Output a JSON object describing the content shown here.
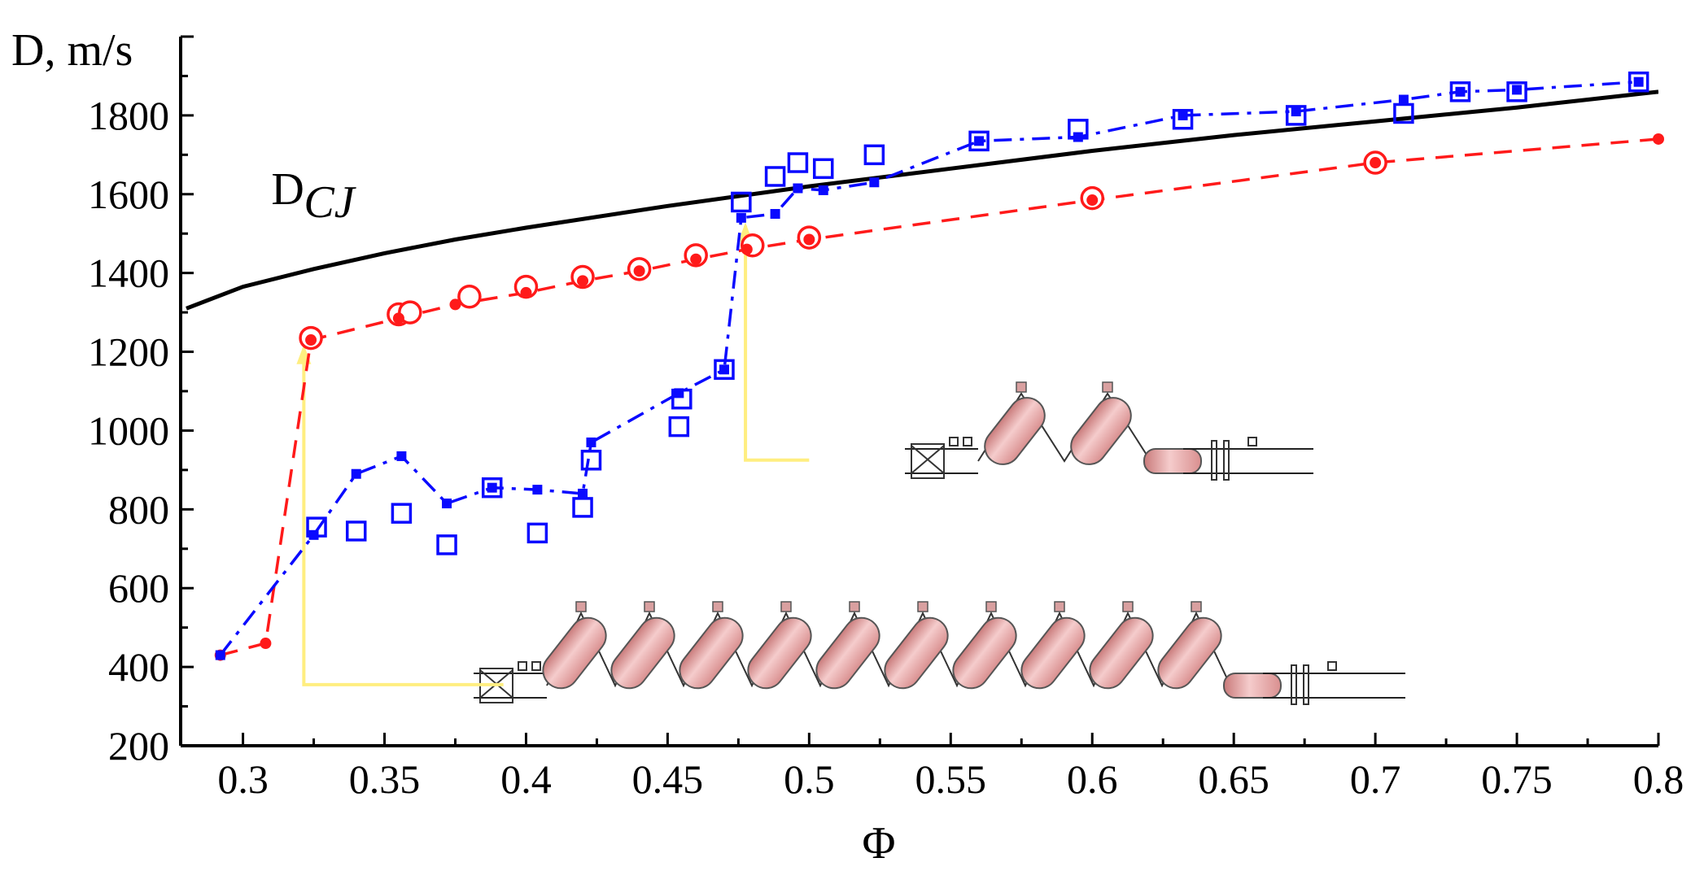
{
  "chart_data": {
    "type": "line",
    "title": "",
    "xlabel": "Φ",
    "ylabel": "D, m/s",
    "xlim": [
      0.28,
      0.8
    ],
    "ylim": [
      200,
      2000
    ],
    "xticks": [
      0.3,
      0.35,
      0.4,
      0.45,
      0.5,
      0.55,
      0.6,
      0.65,
      0.7,
      0.75,
      0.8
    ],
    "xtick_labels": [
      "0.3",
      "0.35",
      "0.4",
      "0.45",
      "0.5",
      "0.55",
      "0.6",
      "0.65",
      "0.7",
      "0.75",
      "0.8"
    ],
    "yticks": [
      200,
      400,
      600,
      800,
      1000,
      1200,
      1400,
      1600,
      1800
    ],
    "ytick_labels": [
      "200",
      "400",
      "600",
      "800",
      "1000",
      "1200",
      "1400",
      "1600",
      "1800"
    ],
    "grid": false,
    "annotations": [
      {
        "text": "D",
        "subscript": "CJ",
        "anchor": {
          "x": 0.31,
          "y": 1575
        }
      }
    ],
    "colors": {
      "cj": "#000000",
      "red": "#ff1a1a",
      "blue": "#0a0aff",
      "arrow": "#ffee80",
      "tube_fill": "#e8a3a3"
    },
    "series": [
      {
        "name": "DCJ",
        "style": "solid-line",
        "x": [
          0.28,
          0.3,
          0.325,
          0.35,
          0.375,
          0.4,
          0.45,
          0.5,
          0.55,
          0.6,
          0.65,
          0.7,
          0.75,
          0.8
        ],
        "y": [
          1310,
          1365,
          1410,
          1450,
          1485,
          1515,
          1570,
          1620,
          1665,
          1710,
          1750,
          1785,
          1820,
          1860
        ]
      },
      {
        "name": "red-filled-circles",
        "style": "dashed-line",
        "x": [
          0.292,
          0.308,
          0.324,
          0.355,
          0.375,
          0.4,
          0.42,
          0.44,
          0.46,
          0.478,
          0.5,
          0.6,
          0.7,
          0.8
        ],
        "y": [
          430,
          460,
          1230,
          1285,
          1320,
          1350,
          1380,
          1405,
          1435,
          1460,
          1485,
          1585,
          1680,
          1740
        ]
      },
      {
        "name": "red-open-circles",
        "style": "markers",
        "x": [
          0.324,
          0.355,
          0.359,
          0.38,
          0.4,
          0.42,
          0.44,
          0.46,
          0.48,
          0.5,
          0.6,
          0.7
        ],
        "y": [
          1235,
          1295,
          1300,
          1340,
          1365,
          1390,
          1410,
          1445,
          1470,
          1490,
          1590,
          1680
        ]
      },
      {
        "name": "blue-filled-squares",
        "style": "dash-dot-line",
        "x": [
          0.292,
          0.325,
          0.34,
          0.356,
          0.372,
          0.388,
          0.404,
          0.42,
          0.423,
          0.454,
          0.47,
          0.476,
          0.488,
          0.496,
          0.505,
          0.523,
          0.56,
          0.595,
          0.632,
          0.672,
          0.71,
          0.73,
          0.75,
          0.793
        ],
        "y": [
          430,
          735,
          890,
          935,
          815,
          855,
          850,
          840,
          970,
          1095,
          1155,
          1540,
          1550,
          1615,
          1610,
          1630,
          1735,
          1745,
          1800,
          1810,
          1840,
          1860,
          1865,
          1885
        ]
      },
      {
        "name": "blue-open-squares",
        "style": "markers",
        "x": [
          0.326,
          0.34,
          0.356,
          0.372,
          0.388,
          0.404,
          0.42,
          0.423,
          0.454,
          0.455,
          0.47,
          0.476,
          0.488,
          0.496,
          0.505,
          0.523,
          0.56,
          0.595,
          0.632,
          0.672,
          0.71,
          0.73,
          0.75,
          0.793
        ],
        "y": [
          755,
          745,
          790,
          710,
          855,
          740,
          805,
          925,
          1010,
          1080,
          1155,
          1580,
          1645,
          1680,
          1665,
          1700,
          1735,
          1765,
          1790,
          1800,
          1805,
          1860,
          1860,
          1885
        ]
      }
    ],
    "arrows": [
      {
        "from": {
          "x": 0.392,
          "y": 355
        },
        "corner": {
          "x": 0.3215,
          "y": 355
        },
        "to": {
          "x": 0.3215,
          "y": 1210
        }
      },
      {
        "from": {
          "x": 0.5,
          "y": 925
        },
        "corner": {
          "x": 0.4775,
          "y": 925
        },
        "to": {
          "x": 0.4775,
          "y": 1520
        }
      }
    ]
  }
}
